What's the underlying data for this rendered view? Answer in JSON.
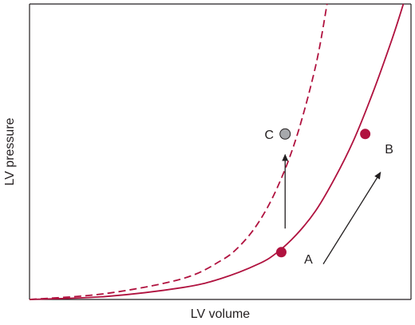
{
  "chart_data": {
    "type": "line",
    "xlabel": "LV volume",
    "ylabel": "LV pressure",
    "grid": false,
    "legend": "none",
    "colors": {
      "curve": "#b0123f",
      "point_c": "#a7a9ac",
      "arrow": "#231f20",
      "axis": "#231f20"
    },
    "series": [
      {
        "style": "solid",
        "x": [
          0,
          0.2,
          0.4,
          0.5,
          0.6,
          0.65,
          0.7,
          0.75,
          0.8,
          0.85,
          0.9,
          0.95,
          0.98
        ],
        "y": [
          0,
          0.01,
          0.04,
          0.07,
          0.12,
          0.16,
          0.22,
          0.3,
          0.41,
          0.54,
          0.7,
          0.88,
          1.0
        ]
      },
      {
        "style": "dashed",
        "x": [
          0,
          0.2,
          0.4,
          0.5,
          0.55,
          0.6,
          0.65,
          0.7,
          0.75,
          0.78
        ],
        "y": [
          0,
          0.02,
          0.07,
          0.13,
          0.18,
          0.26,
          0.38,
          0.55,
          0.79,
          1.0
        ]
      }
    ],
    "points": [
      {
        "label": "A",
        "x": 0.66,
        "y": 0.16
      },
      {
        "label": "B",
        "x": 0.88,
        "y": 0.56
      },
      {
        "label": "C",
        "x": 0.67,
        "y": 0.56
      }
    ],
    "arrows": [
      {
        "from": [
          0.67,
          0.24
        ],
        "to": [
          0.67,
          0.49
        ]
      },
      {
        "from": [
          0.77,
          0.12
        ],
        "to": [
          0.92,
          0.43
        ]
      }
    ]
  }
}
